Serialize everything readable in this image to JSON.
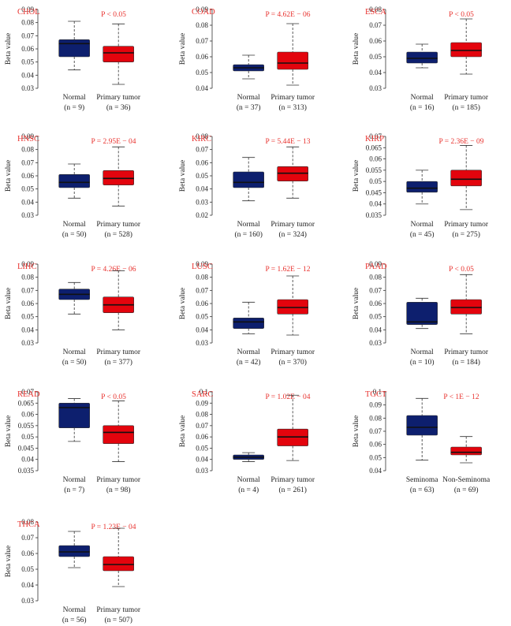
{
  "colors": {
    "normal": "#0d1f6e",
    "tumor": "#e3040d",
    "label": "#e8322e"
  },
  "chart_data": [
    {
      "type": "boxplot",
      "title": "CHOL",
      "pvalue": "P < 0.05",
      "ylabel": "Beta value",
      "ylim": [
        0.03,
        0.09
      ],
      "yticks": [
        "0.03",
        "0.04",
        "0.05",
        "0.06",
        "0.07",
        "0.08",
        "0.09"
      ],
      "groups": [
        {
          "name": "Normal",
          "n": "(n = 9)",
          "min": 0.044,
          "q1": 0.054,
          "median": 0.064,
          "q3": 0.067,
          "max": 0.081
        },
        {
          "name": "Primary tumor",
          "n": "(n = 36)",
          "min": 0.033,
          "q1": 0.05,
          "median": 0.057,
          "q3": 0.062,
          "max": 0.079
        }
      ]
    },
    {
      "type": "boxplot",
      "title": "COAD",
      "pvalue": "P = 4.62E − 06",
      "ylabel": "Beta value",
      "ylim": [
        0.04,
        0.09
      ],
      "yticks": [
        "0.04",
        "0.05",
        "0.06",
        "0.07",
        "0.08",
        "0.09"
      ],
      "groups": [
        {
          "name": "Normal",
          "n": "(n = 37)",
          "min": 0.046,
          "q1": 0.051,
          "median": 0.053,
          "q3": 0.055,
          "max": 0.061
        },
        {
          "name": "Primary tumor",
          "n": "(n = 313)",
          "min": 0.042,
          "q1": 0.052,
          "median": 0.056,
          "q3": 0.063,
          "max": 0.081
        }
      ]
    },
    {
      "type": "boxplot",
      "title": "ESCA",
      "pvalue": "P < 0.05",
      "ylabel": "Beta value",
      "ylim": [
        0.03,
        0.08
      ],
      "yticks": [
        "0.03",
        "0.04",
        "0.05",
        "0.06",
        "0.07",
        "0.08"
      ],
      "groups": [
        {
          "name": "Normal",
          "n": "(n = 16)",
          "min": 0.043,
          "q1": 0.046,
          "median": 0.049,
          "q3": 0.053,
          "max": 0.058
        },
        {
          "name": "Primary tumor",
          "n": "(n = 185)",
          "min": 0.039,
          "q1": 0.05,
          "median": 0.054,
          "q3": 0.059,
          "max": 0.074
        }
      ]
    },
    {
      "type": "boxplot",
      "title": "HNSC",
      "pvalue": "P = 2.95E − 04",
      "ylabel": "Beta value",
      "ylim": [
        0.03,
        0.09
      ],
      "yticks": [
        "0.03",
        "0.04",
        "0.05",
        "0.06",
        "0.07",
        "0.08",
        "0.09"
      ],
      "groups": [
        {
          "name": "Normal",
          "n": "(n = 50)",
          "min": 0.043,
          "q1": 0.051,
          "median": 0.055,
          "q3": 0.061,
          "max": 0.069
        },
        {
          "name": "Primary tumor",
          "n": "(n = 528)",
          "min": 0.037,
          "q1": 0.053,
          "median": 0.058,
          "q3": 0.064,
          "max": 0.082
        }
      ]
    },
    {
      "type": "boxplot",
      "title": "KIRC",
      "pvalue": "P = 5.44E − 13",
      "ylabel": "Beta value",
      "ylim": [
        0.02,
        0.08
      ],
      "yticks": [
        "0.02",
        "0.03",
        "0.04",
        "0.05",
        "0.06",
        "0.07",
        "0.08"
      ],
      "groups": [
        {
          "name": "Normal",
          "n": "(n = 160)",
          "min": 0.031,
          "q1": 0.041,
          "median": 0.045,
          "q3": 0.053,
          "max": 0.064
        },
        {
          "name": "Primary tumor",
          "n": "(n = 324)",
          "min": 0.033,
          "q1": 0.046,
          "median": 0.052,
          "q3": 0.057,
          "max": 0.072
        }
      ]
    },
    {
      "type": "boxplot",
      "title": "KIRP",
      "pvalue": "P = 2.36E − 09",
      "ylabel": "Beta value",
      "ylim": [
        0.035,
        0.07
      ],
      "yticks": [
        "0.035",
        "0.04",
        "0.045",
        "0.05",
        "0.055",
        "0.06",
        "0.065",
        "0.07"
      ],
      "groups": [
        {
          "name": "Normal",
          "n": "(n = 45)",
          "min": 0.04,
          "q1": 0.0452,
          "median": 0.047,
          "q3": 0.05,
          "max": 0.055
        },
        {
          "name": "Primary tumor",
          "n": "(n = 275)",
          "min": 0.0375,
          "q1": 0.048,
          "median": 0.051,
          "q3": 0.055,
          "max": 0.066
        }
      ]
    },
    {
      "type": "boxplot",
      "title": "LIHC",
      "pvalue": "P = 4.26E − 06",
      "ylabel": "Beta value",
      "ylim": [
        0.03,
        0.09
      ],
      "yticks": [
        "0.03",
        "0.04",
        "0.05",
        "0.06",
        "0.07",
        "0.08",
        "0.09"
      ],
      "groups": [
        {
          "name": "Normal",
          "n": "(n = 50)",
          "min": 0.052,
          "q1": 0.063,
          "median": 0.067,
          "q3": 0.071,
          "max": 0.076
        },
        {
          "name": "Primary tumor",
          "n": "(n = 377)",
          "min": 0.04,
          "q1": 0.053,
          "median": 0.059,
          "q3": 0.065,
          "max": 0.085
        }
      ]
    },
    {
      "type": "boxplot",
      "title": "LUSC",
      "pvalue": "P = 1.62E − 12",
      "ylabel": "Beta value",
      "ylim": [
        0.03,
        0.09
      ],
      "yticks": [
        "0.03",
        "0.04",
        "0.05",
        "0.06",
        "0.07",
        "0.08",
        "0.09"
      ],
      "groups": [
        {
          "name": "Normal",
          "n": "(n = 42)",
          "min": 0.037,
          "q1": 0.041,
          "median": 0.046,
          "q3": 0.049,
          "max": 0.061
        },
        {
          "name": "Primary tumor",
          "n": "(n = 370)",
          "min": 0.036,
          "q1": 0.052,
          "median": 0.057,
          "q3": 0.063,
          "max": 0.081
        }
      ]
    },
    {
      "type": "boxplot",
      "title": "PAAD",
      "pvalue": "P < 0.05",
      "ylabel": "Beta value",
      "ylim": [
        0.03,
        0.09
      ],
      "yticks": [
        "0.03",
        "0.04",
        "0.05",
        "0.06",
        "0.07",
        "0.08",
        "0.09"
      ],
      "groups": [
        {
          "name": "Normal",
          "n": "(n = 10)",
          "min": 0.041,
          "q1": 0.044,
          "median": 0.046,
          "q3": 0.061,
          "max": 0.064
        },
        {
          "name": "Primary tumor",
          "n": "(n = 184)",
          "min": 0.037,
          "q1": 0.052,
          "median": 0.057,
          "q3": 0.063,
          "max": 0.082
        }
      ]
    },
    {
      "type": "boxplot",
      "title": "READ",
      "pvalue": "P < 0.05",
      "ylabel": "Beta value",
      "ylim": [
        0.035,
        0.07
      ],
      "yticks": [
        "0.035",
        "0.04",
        "0.045",
        "0.05",
        "0.055",
        "0.06",
        "0.065",
        "0.07"
      ],
      "groups": [
        {
          "name": "Normal",
          "n": "(n = 7)",
          "min": 0.048,
          "q1": 0.054,
          "median": 0.063,
          "q3": 0.065,
          "max": 0.067
        },
        {
          "name": "Primary tumor",
          "n": "(n = 98)",
          "min": 0.039,
          "q1": 0.047,
          "median": 0.052,
          "q3": 0.055,
          "max": 0.066
        }
      ]
    },
    {
      "type": "boxplot",
      "title": "SARC",
      "pvalue": "P = 1.02E − 04",
      "ylabel": "Beta value",
      "ylim": [
        0.03,
        0.1
      ],
      "yticks": [
        "0.03",
        "0.04",
        "0.05",
        "0.06",
        "0.07",
        "0.08",
        "0.09",
        "0.1"
      ],
      "groups": [
        {
          "name": "Normal",
          "n": "(n = 4)",
          "min": 0.038,
          "q1": 0.04,
          "median": 0.042,
          "q3": 0.044,
          "max": 0.046
        },
        {
          "name": "Primary tumor",
          "n": "(n = 261)",
          "min": 0.039,
          "q1": 0.052,
          "median": 0.06,
          "q3": 0.067,
          "max": 0.097
        }
      ]
    },
    {
      "type": "boxplot",
      "title": "TGCT",
      "pvalue": "P < 1E − 12",
      "ylabel": "Beta value",
      "ylim": [
        0.04,
        0.1
      ],
      "yticks": [
        "0.04",
        "0.05",
        "0.06",
        "0.07",
        "0.08",
        "0.09",
        "0.1"
      ],
      "groups": [
        {
          "name": "Seminoma",
          "n": "(n = 63)",
          "min": 0.048,
          "q1": 0.067,
          "median": 0.073,
          "q3": 0.082,
          "max": 0.095
        },
        {
          "name": "Non-Seminoma",
          "n": "(n = 69)",
          "min": 0.046,
          "q1": 0.052,
          "median": 0.054,
          "q3": 0.058,
          "max": 0.066
        }
      ]
    },
    {
      "type": "boxplot",
      "title": "THCA",
      "pvalue": "P = 1.23E − 04",
      "ylabel": "Beta value",
      "ylim": [
        0.03,
        0.08
      ],
      "yticks": [
        "0.03",
        "0.04",
        "0.05",
        "0.06",
        "0.07",
        "0.08"
      ],
      "groups": [
        {
          "name": "Normal",
          "n": "(n = 56)",
          "min": 0.051,
          "q1": 0.058,
          "median": 0.061,
          "q3": 0.065,
          "max": 0.074
        },
        {
          "name": "Primary tumor",
          "n": "(n = 507)",
          "min": 0.039,
          "q1": 0.049,
          "median": 0.053,
          "q3": 0.058,
          "max": 0.076
        }
      ]
    }
  ]
}
